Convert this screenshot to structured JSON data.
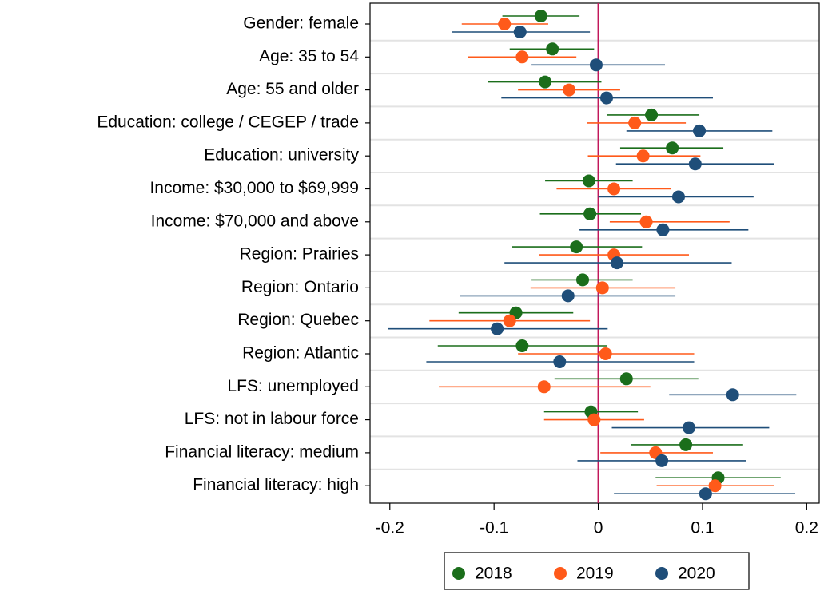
{
  "chart_data": {
    "type": "coefplot",
    "categories": [
      "Gender: female",
      "Age: 35 to 54",
      "Age: 55 and older",
      "Education: college / CEGEP / trade",
      "Education: university",
      "Income: $30,000 to $69,999",
      "Income: $70,000 and above",
      "Region: Prairies",
      "Region: Ontario",
      "Region: Quebec",
      "Region: Atlantic",
      "LFS: unemployed",
      "LFS: not in labour force",
      "Financial literacy: medium",
      "Financial literacy: high"
    ],
    "series": [
      {
        "name": "2018",
        "color": "#1b6e1b",
        "values": [
          -0.055,
          -0.044,
          -0.051,
          0.051,
          0.071,
          -0.009,
          -0.008,
          -0.021,
          -0.015,
          -0.079,
          -0.073,
          0.027,
          -0.007,
          0.084,
          0.115
        ],
        "lower": [
          -0.092,
          -0.085,
          -0.106,
          0.008,
          0.021,
          -0.051,
          -0.056,
          -0.083,
          -0.064,
          -0.134,
          -0.154,
          -0.042,
          -0.052,
          0.031,
          0.055
        ],
        "upper": [
          -0.018,
          -0.004,
          0.003,
          0.097,
          0.12,
          0.033,
          0.041,
          0.042,
          0.033,
          -0.024,
          0.008,
          0.096,
          0.038,
          0.139,
          0.175
        ]
      },
      {
        "name": "2019",
        "color": "#ff5a1a",
        "values": [
          -0.09,
          -0.073,
          -0.028,
          0.035,
          0.043,
          0.015,
          0.046,
          0.015,
          0.004,
          -0.085,
          0.007,
          -0.052,
          -0.004,
          0.055,
          0.112
        ],
        "lower": [
          -0.131,
          -0.125,
          -0.077,
          -0.011,
          -0.01,
          -0.04,
          0.011,
          -0.057,
          -0.065,
          -0.162,
          -0.077,
          -0.153,
          -0.052,
          0.002,
          0.056
        ],
        "upper": [
          -0.048,
          -0.021,
          0.021,
          0.084,
          0.098,
          0.07,
          0.126,
          0.087,
          0.074,
          -0.008,
          0.092,
          0.05,
          0.044,
          0.11,
          0.169
        ]
      },
      {
        "name": "2020",
        "color": "#1f4e79",
        "values": [
          -0.075,
          -0.002,
          0.008,
          0.097,
          0.093,
          0.077,
          0.062,
          0.018,
          -0.029,
          -0.097,
          -0.037,
          0.129,
          0.087,
          0.061,
          0.103
        ],
        "lower": [
          -0.14,
          -0.064,
          -0.093,
          0.027,
          0.017,
          0.0,
          -0.018,
          -0.09,
          -0.133,
          -0.202,
          -0.165,
          0.068,
          0.013,
          -0.02,
          0.015
        ],
        "upper": [
          -0.008,
          0.064,
          0.11,
          0.167,
          0.169,
          0.149,
          0.144,
          0.128,
          0.074,
          0.009,
          0.092,
          0.19,
          0.164,
          0.142,
          0.189
        ]
      }
    ],
    "xlim": [
      -0.219,
      0.212
    ],
    "xticks": [
      -0.2,
      -0.1,
      0,
      0.1,
      0.2
    ],
    "reference_line": 0,
    "reference_color": "#c2185b",
    "legend": "bottom"
  }
}
